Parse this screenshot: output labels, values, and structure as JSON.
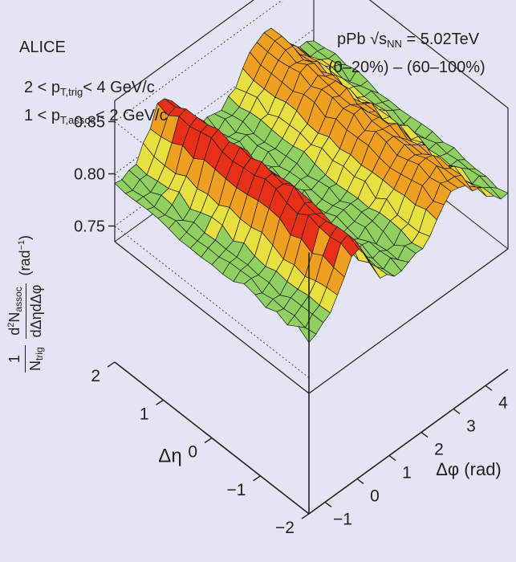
{
  "header": {
    "experiment": "ALICE",
    "system_prefix": "pPb",
    "energy_tail": "= 5.02TeV",
    "centrality": "(0–20%) – (60–100%)",
    "trig_prefix": "2 < p",
    "trig_sub": "T,trig",
    "trig_suffix": "< 4 GeV/c",
    "assoc_prefix": "1 < p",
    "assoc_sub": "T,assoc",
    "assoc_suffix": "< 2 GeV/c"
  },
  "chart_data": {
    "type": "surface",
    "title": "pPb √sNN = 5.02TeV (0–20%) – (60–100%)",
    "xlabel": "Δφ (rad)",
    "ylabel": "Δη",
    "zlabel": "1/Ntrig d²Nassoc/dΔηdΔφ (rad⁻¹)",
    "xlim": [
      -1.5,
      4.7
    ],
    "ylim": [
      -2,
      2
    ],
    "zlim": [
      0.735,
      0.87
    ],
    "x_ticks": [
      "−1",
      "0",
      "1",
      "2",
      "3",
      "4"
    ],
    "y_ticks": [
      "2",
      "1",
      "0",
      "−1",
      "−2"
    ],
    "z_ticks": [
      "0.85",
      "0.80",
      "0.75"
    ],
    "x_tick_values": [
      -1,
      0,
      1,
      2,
      3,
      4
    ],
    "y_tick_values": [
      2,
      1,
      0,
      -1,
      -2
    ],
    "z_tick_values": [
      0.85,
      0.8,
      0.75
    ],
    "z_profile": "near-side ridge (peak ≈0.85 at Δφ≈0) and away-side ridge (≈0.83 at Δφ≈π), elongated in Δη; minimum ≈0.74 near Δφ≈π/2 at large |Δη|",
    "near_side_peak": 0.85,
    "away_side_peak": 0.83,
    "baseline": 0.79,
    "minimum": 0.74
  },
  "ytitle": {
    "one": "1",
    "ntrig": "N",
    "ntrig_sub": "trig",
    "d2n": "d",
    "d2n_sup": "2",
    "n": "N",
    "n_sub": "assoc",
    "den": "dΔηdΔφ",
    "unit": "(rad",
    "unit_sup": "−1",
    "unit_end": ")"
  },
  "colors": {
    "background": "#e3e6f2",
    "axis": "#222222",
    "grid_line": "#1a1a1a",
    "colormap": [
      "#22a0e0",
      "#3cc0c0",
      "#90d060",
      "#e8e040",
      "#f0a020",
      "#e83018"
    ]
  }
}
